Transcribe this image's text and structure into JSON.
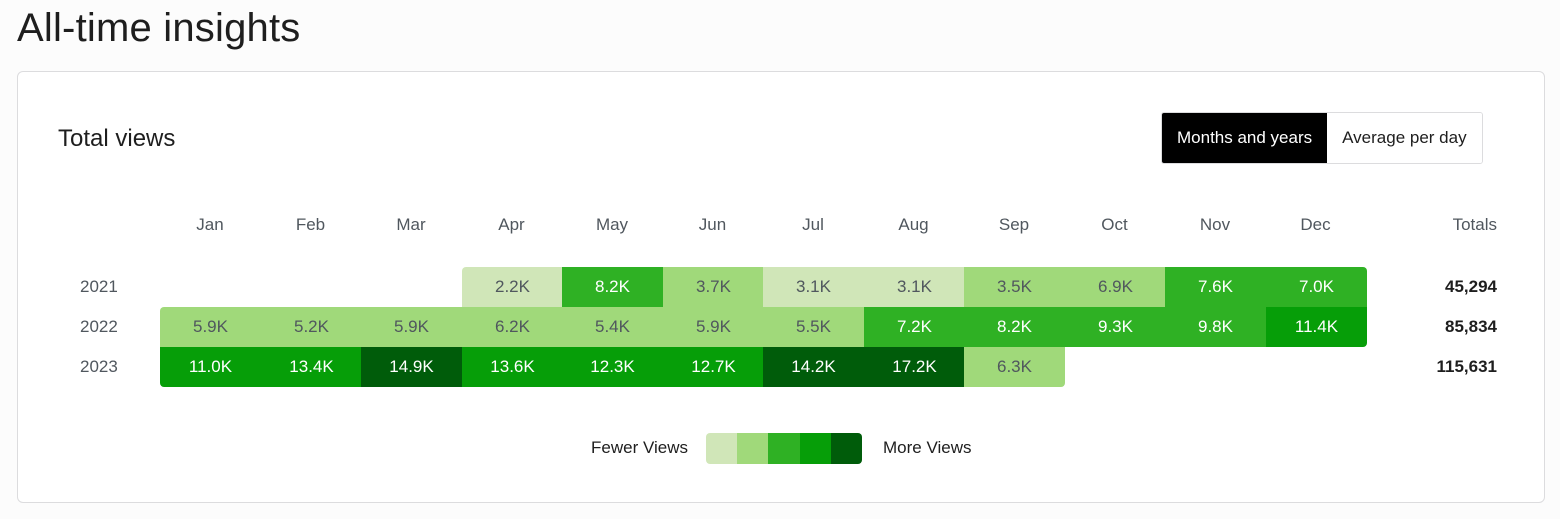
{
  "page": {
    "title": "All-time insights"
  },
  "card": {
    "title": "Total views",
    "toggle": {
      "options": [
        "Months and years",
        "Average per day"
      ],
      "selected": "Months and years"
    }
  },
  "colors": {
    "level1": "#d0e6b8",
    "level2": "#a0d97a",
    "level3": "#2fb124",
    "level4": "#069e08",
    "level5": "#005c0a",
    "text_dark_cell": "#50575e",
    "text_light_cell": "#ffffff"
  },
  "chart_data": {
    "type": "heatmap",
    "title": "Total views",
    "months": [
      "Jan",
      "Feb",
      "Mar",
      "Apr",
      "May",
      "Jun",
      "Jul",
      "Aug",
      "Sep",
      "Oct",
      "Nov",
      "Dec"
    ],
    "totals_label": "Totals",
    "rows": [
      {
        "year": "2021",
        "cells": [
          null,
          null,
          null,
          {
            "label": "2.2K",
            "level": 1
          },
          {
            "label": "8.2K",
            "level": 3
          },
          {
            "label": "3.7K",
            "level": 2
          },
          {
            "label": "3.1K",
            "level": 1
          },
          {
            "label": "3.1K",
            "level": 1
          },
          {
            "label": "3.5K",
            "level": 2
          },
          {
            "label": "6.9K",
            "level": 2
          },
          {
            "label": "7.6K",
            "level": 3
          },
          {
            "label": "7.0K",
            "level": 3
          }
        ],
        "total": "45,294"
      },
      {
        "year": "2022",
        "cells": [
          {
            "label": "5.9K",
            "level": 2
          },
          {
            "label": "5.2K",
            "level": 2
          },
          {
            "label": "5.9K",
            "level": 2
          },
          {
            "label": "6.2K",
            "level": 2
          },
          {
            "label": "5.4K",
            "level": 2
          },
          {
            "label": "5.9K",
            "level": 2
          },
          {
            "label": "5.5K",
            "level": 2
          },
          {
            "label": "7.2K",
            "level": 3
          },
          {
            "label": "8.2K",
            "level": 3
          },
          {
            "label": "9.3K",
            "level": 3
          },
          {
            "label": "9.8K",
            "level": 3
          },
          {
            "label": "11.4K",
            "level": 4
          }
        ],
        "total": "85,834"
      },
      {
        "year": "2023",
        "cells": [
          {
            "label": "11.0K",
            "level": 4
          },
          {
            "label": "13.4K",
            "level": 4
          },
          {
            "label": "14.9K",
            "level": 5
          },
          {
            "label": "13.6K",
            "level": 4
          },
          {
            "label": "12.3K",
            "level": 4
          },
          {
            "label": "12.7K",
            "level": 4
          },
          {
            "label": "14.2K",
            "level": 5
          },
          {
            "label": "17.2K",
            "level": 5
          },
          {
            "label": "6.3K",
            "level": 2
          },
          null,
          null,
          null
        ],
        "total": "115,631"
      }
    ],
    "legend": {
      "low_label": "Fewer Views",
      "high_label": "More Views",
      "levels": [
        1,
        2,
        3,
        4,
        5
      ]
    }
  }
}
